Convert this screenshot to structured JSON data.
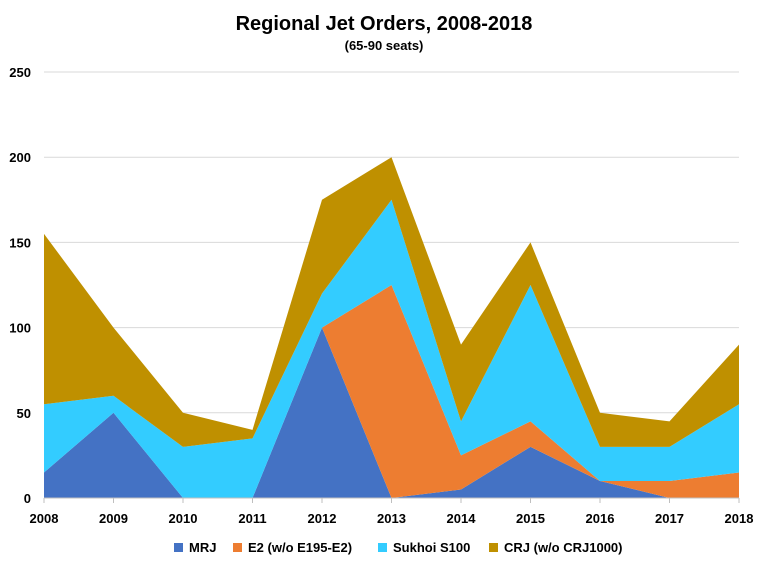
{
  "chart_data": {
    "type": "area",
    "stacked": true,
    "title": "Regional Jet Orders, 2008-2018",
    "subtitle": "(65-90 seats)",
    "xlabel": "",
    "ylabel": "",
    "categories": [
      "2008",
      "2009",
      "2010",
      "2011",
      "2012",
      "2013",
      "2014",
      "2015",
      "2016",
      "2017",
      "2018"
    ],
    "ylim": [
      0,
      250
    ],
    "yticks": [
      "0",
      "50",
      "100",
      "150",
      "200",
      "250"
    ],
    "grid": true,
    "legend_position": "bottom",
    "series": [
      {
        "name": "MRJ",
        "color": "#4472C4",
        "values": [
          15,
          50,
          0,
          0,
          100,
          0,
          5,
          30,
          10,
          0,
          0
        ]
      },
      {
        "name": "E2 (w/o E195-E2)",
        "color": "#ED7D31",
        "values": [
          0,
          0,
          0,
          0,
          0,
          125,
          20,
          15,
          0,
          10,
          15
        ]
      },
      {
        "name": "Sukhoi S100",
        "color": "#33CCFF",
        "values": [
          40,
          10,
          30,
          35,
          20,
          50,
          20,
          80,
          20,
          20,
          40
        ]
      },
      {
        "name": "CRJ (w/o CRJ1000)",
        "color": "#BF9000",
        "values": [
          100,
          40,
          20,
          5,
          55,
          25,
          45,
          25,
          20,
          15,
          35
        ]
      }
    ]
  }
}
